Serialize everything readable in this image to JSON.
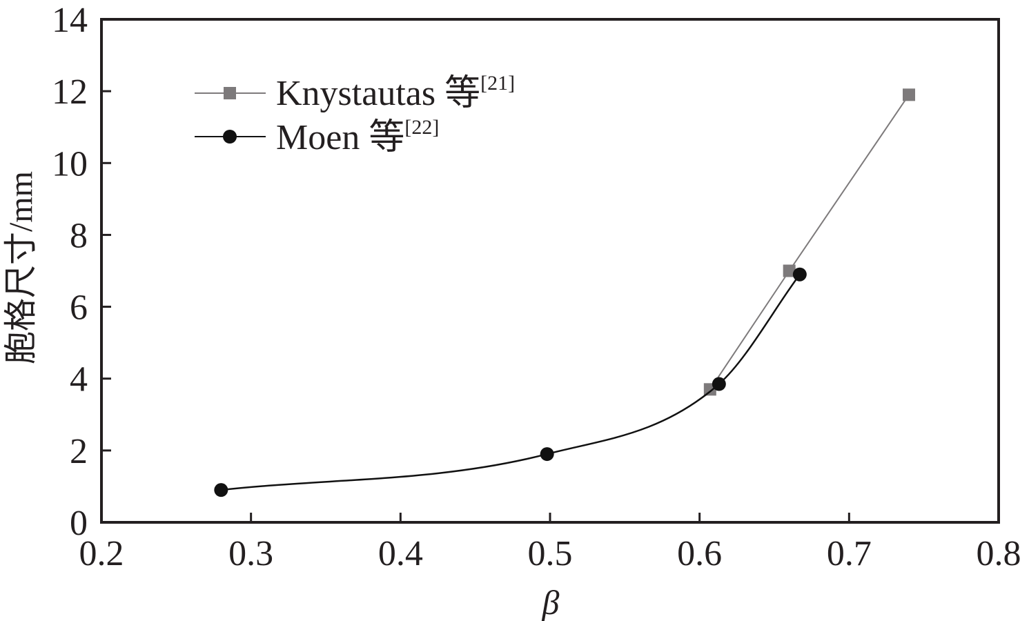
{
  "chart_data": {
    "type": "line",
    "xlabel": "β",
    "ylabel": "胞格尺寸/mm",
    "xlim": [
      0.2,
      0.8
    ],
    "ylim": [
      0,
      14
    ],
    "xticks": [
      "0.2",
      "0.3",
      "0.4",
      "0.5",
      "0.6",
      "0.7",
      "0.8"
    ],
    "yticks": [
      "0",
      "2",
      "4",
      "6",
      "8",
      "10",
      "12",
      "14"
    ],
    "grid": false,
    "legend_position": "top-left",
    "colors": {
      "knystautas": "#7d7a7b",
      "moen": "#111111",
      "axis": "#231f20"
    },
    "series": [
      {
        "name": "Knystautas 等",
        "ref": "[21]",
        "marker": "square",
        "connect": "straight",
        "x": [
          0.607,
          0.66,
          0.74
        ],
        "y": [
          3.7,
          7.0,
          11.9
        ]
      },
      {
        "name": "Moen 等",
        "ref": "[22]",
        "marker": "circle",
        "connect": "smooth",
        "x": [
          0.28,
          0.498,
          0.613,
          0.667
        ],
        "y": [
          0.9,
          1.9,
          3.85,
          6.9
        ]
      }
    ]
  }
}
